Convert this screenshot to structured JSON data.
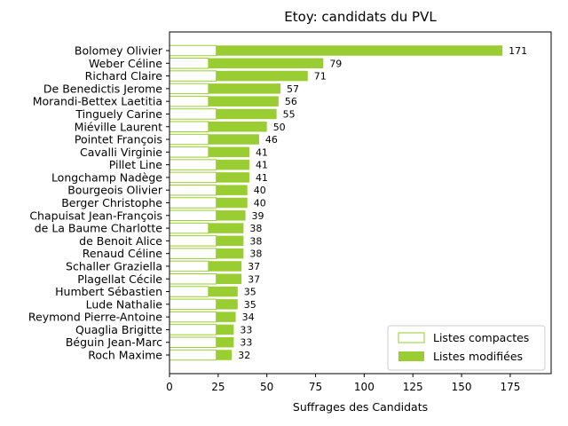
{
  "chart_data": {
    "type": "bar",
    "orientation": "horizontal",
    "stacked": true,
    "title": "Etoy: candidats du PVL",
    "xlabel": "Suffrages des Candidats",
    "ylabel": "",
    "xlim": [
      0,
      196
    ],
    "xticks": [
      0,
      25,
      50,
      75,
      100,
      125,
      150,
      175
    ],
    "grid": false,
    "legend_position": "lower-right",
    "categories": [
      "Bolomey Olivier",
      "Weber Céline",
      "Richard Claire",
      "De Benedictis Jerome",
      "Morandi-Bettex Laetitia",
      "Tinguely Carine",
      "Miéville Laurent",
      "Pointet François",
      "Cavalli Virginie",
      "Pillet Line",
      "Longchamp Nadège",
      "Bourgeois Olivier",
      "Berger Christophe",
      "Chapuisat Jean-François",
      "de La Baume Charlotte",
      "de Benoit Alice",
      "Renaud Céline",
      "Schaller Graziella",
      "Plagellat Cécile",
      "Humbert Sébastien",
      "Lude Nathalie",
      "Reymond Pierre-Antoine",
      "Quaglia Brigitte",
      "Béguin Jean-Marc",
      "Roch Maxime"
    ],
    "series": [
      {
        "name": "Listes compactes",
        "color": "#9acd32",
        "fill": "none",
        "values": [
          24,
          20,
          24,
          20,
          20,
          24,
          20,
          20,
          20,
          24,
          24,
          24,
          24,
          24,
          20,
          24,
          24,
          20,
          24,
          20,
          24,
          24,
          24,
          24,
          24
        ]
      },
      {
        "name": "Listes modifiées",
        "color": "#9acd32",
        "fill": "solid",
        "values": [
          147,
          59,
          47,
          37,
          36,
          31,
          30,
          26,
          21,
          17,
          17,
          16,
          16,
          15,
          18,
          14,
          14,
          17,
          13,
          15,
          11,
          10,
          9,
          9,
          8
        ]
      }
    ],
    "totals": [
      "171",
      "79",
      "71",
      "57",
      "56",
      "55",
      "50",
      "46",
      "41",
      "41",
      "41",
      "40",
      "40",
      "39",
      "38",
      "38",
      "38",
      "37",
      "37",
      "35",
      "35",
      "34",
      "33",
      "33",
      "32"
    ]
  }
}
